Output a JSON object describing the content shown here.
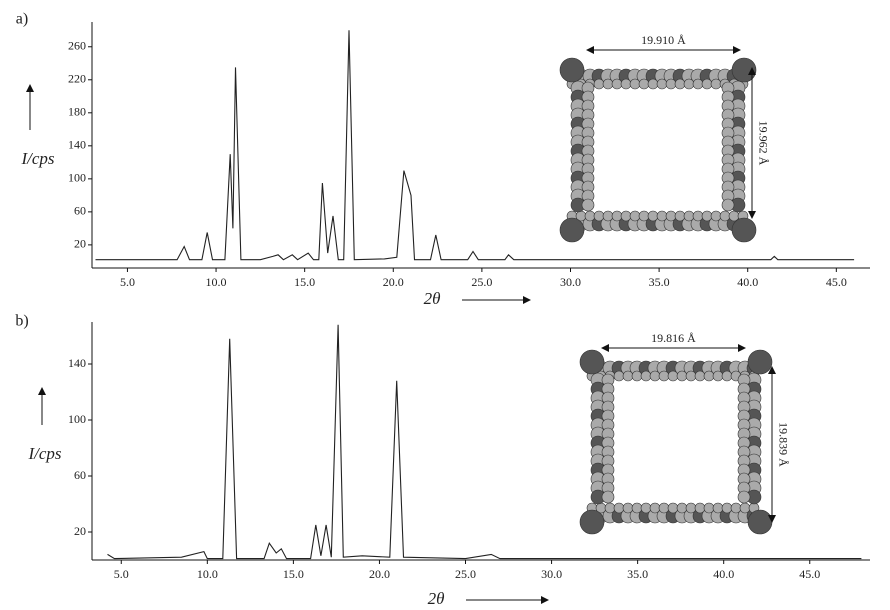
{
  "chart_data": [
    {
      "type": "line",
      "panel_label": "a)",
      "xlabel": "2θ",
      "ylabel": "I/cps",
      "x": [
        3.2,
        4.5,
        6,
        7.8,
        8.2,
        8.5,
        9.2,
        9.5,
        9.8,
        10.5,
        10.8,
        10.95,
        11.1,
        11.4,
        12.5,
        13.2,
        13.5,
        13.8,
        14.3,
        14.6,
        15.2,
        15.5,
        15.8,
        16.0,
        16.3,
        16.6,
        16.9,
        17.2,
        17.5,
        17.8,
        19.5,
        20.2,
        20.6,
        21.0,
        21.2,
        22.1,
        22.4,
        22.7,
        24.2,
        24.5,
        24.8,
        26.3,
        26.5,
        26.8,
        30,
        35,
        41.3,
        41.5,
        41.7,
        46
      ],
      "values": [
        2,
        2,
        2,
        2,
        18,
        2,
        2,
        35,
        2,
        2,
        130,
        40,
        235,
        2,
        2,
        6,
        8,
        2,
        8,
        2,
        10,
        2,
        2,
        95,
        10,
        55,
        2,
        2,
        280,
        2,
        3,
        5,
        110,
        80,
        2,
        2,
        32,
        2,
        2,
        12,
        2,
        2,
        8,
        2,
        2,
        2,
        2,
        6,
        2,
        2
      ],
      "color": "#222222",
      "xlim": [
        3,
        46.9
      ],
      "ylim": [
        -8,
        290
      ],
      "xticks": [
        {
          "value": 5,
          "label": "5.0"
        },
        {
          "value": 10,
          "label": "10.0"
        },
        {
          "value": 15,
          "label": "15.0"
        },
        {
          "value": 20,
          "label": "20.0"
        },
        {
          "value": 25,
          "label": "25.0"
        },
        {
          "value": 30,
          "label": "30.0"
        },
        {
          "value": 35,
          "label": "35.0"
        },
        {
          "value": 40,
          "label": "40.0"
        },
        {
          "value": 45,
          "label": "45.0"
        }
      ],
      "yticks": [
        20,
        60,
        100,
        140,
        180,
        220,
        260
      ],
      "width_label": "19.910 Å",
      "height_label": "19.962 Å"
    },
    {
      "type": "line",
      "panel_label": "b)",
      "xlabel": "2θ",
      "ylabel": "I/cps",
      "x": [
        4.2,
        4.6,
        8.5,
        9.8,
        10.0,
        10.9,
        11.3,
        11.7,
        13.3,
        13.6,
        14.0,
        14.3,
        14.6,
        16.0,
        16.3,
        16.6,
        16.9,
        17.2,
        17.6,
        17.9,
        19,
        20.6,
        21.0,
        21.4,
        25,
        26.5,
        27,
        35,
        48
      ],
      "values": [
        4,
        1,
        2,
        6,
        1,
        1,
        158,
        1,
        1,
        12,
        5,
        8,
        1,
        1,
        25,
        3,
        25,
        2,
        168,
        2,
        3,
        2,
        128,
        2,
        1,
        4,
        1,
        1,
        1
      ],
      "color": "#222222",
      "xlim": [
        3.3,
        48.5
      ],
      "ylim": [
        0,
        170
      ],
      "xticks": [
        {
          "value": 5,
          "label": "5.0"
        },
        {
          "value": 10,
          "label": "10.0"
        },
        {
          "value": 15,
          "label": "15.0"
        },
        {
          "value": 20,
          "label": "20.0"
        },
        {
          "value": 25,
          "label": "25.0"
        },
        {
          "value": 30,
          "label": "30.0"
        },
        {
          "value": 35,
          "label": "35.0"
        },
        {
          "value": 40,
          "label": "40.0"
        },
        {
          "value": 45,
          "label": "45.0"
        }
      ],
      "yticks": [
        20,
        60,
        100,
        140
      ],
      "width_label": "19.816 Å",
      "height_label": "19.839 Å"
    }
  ]
}
